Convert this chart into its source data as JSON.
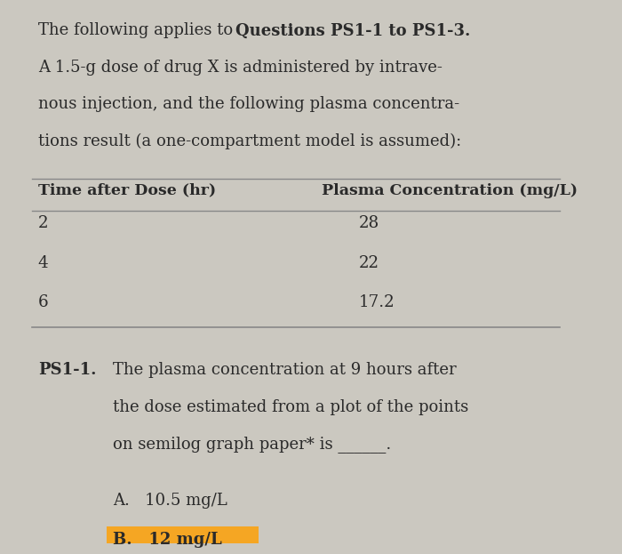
{
  "bg_color": "#cbc8c0",
  "paper_color": "#f0ede8",
  "col1_header": "Time after Dose (hr)",
  "col2_header": "Plasma Concentration (mg/L)",
  "table_data": [
    [
      "2",
      "28"
    ],
    [
      "4",
      "22"
    ],
    [
      "6",
      "17.2"
    ]
  ],
  "question_label": "PS1-1.",
  "option_a": "A.   10.5 mg/L",
  "option_b": "B.   12 mg/L",
  "highlight_color": "#f5a623",
  "text_color": "#2a2a2a",
  "line_color": "#888888"
}
